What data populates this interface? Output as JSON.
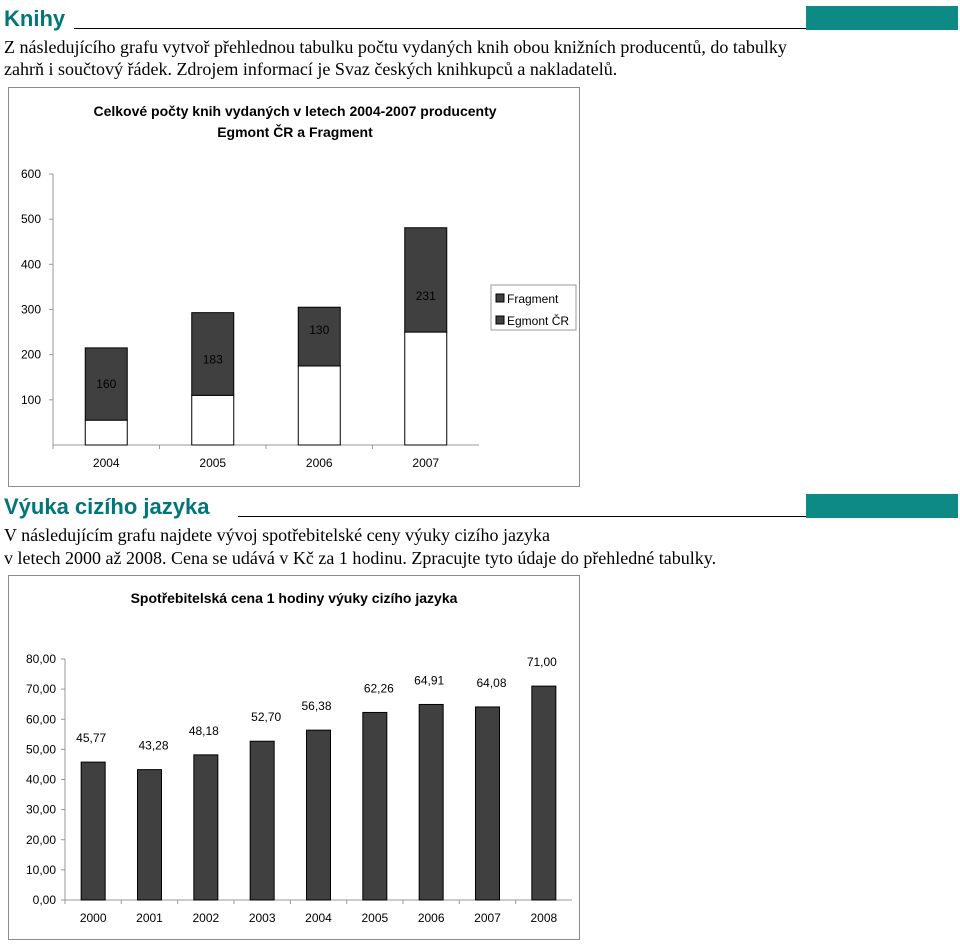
{
  "section1": {
    "title": "Knihy",
    "text_line1": "Z následujícího grafu vytvoř přehlednou tabulku počtu vydaných knih obou knižních producentů, do tabulky",
    "text_line2": "zahrň i součtový řádek. Zdrojem informací je Svaz českých knihkupců a nakladatelů."
  },
  "section2": {
    "title": "Výuka cizího jazyka",
    "text_line1": "V následujícím grafu najdete vývoj spotřebitelské ceny výuky cizího jazyka",
    "text_line2": " v letech 2000 až 2008. Cena se udává v Kč za 1 hodinu. Zpracujte tyto údaje do přehledné tabulky."
  },
  "colors": {
    "accent": "#0d8a85",
    "title_text": "#00767a",
    "bar_dark": "#404040",
    "bar_light": "#ffffff"
  },
  "chart_data": [
    {
      "type": "bar",
      "stacked": true,
      "title_line1": "Celkové počty knih vydaných v letech 2004-2007 producenty",
      "title_line2": "Egmont ČR a Fragment",
      "categories": [
        "2004",
        "2005",
        "2006",
        "2007"
      ],
      "series": [
        {
          "name": "Egmont ČR",
          "values": [
            55,
            110,
            175,
            250
          ],
          "color": "#ffffff"
        },
        {
          "name": "Fragment",
          "values": [
            160,
            183,
            130,
            231
          ],
          "color": "#404040"
        }
      ],
      "data_labels": [
        "160",
        "183",
        "130",
        "231"
      ],
      "yticks": [
        "100",
        "200",
        "300",
        "400",
        "500",
        "600"
      ],
      "ylim": [
        0,
        600
      ],
      "legend_position": "right",
      "legend": [
        "Fragment",
        "Egmont ČR"
      ]
    },
    {
      "type": "bar",
      "title": "Spotřebitelská cena 1 hodiny výuky cizího jazyka",
      "categories": [
        "2000",
        "2001",
        "2002",
        "2003",
        "2004",
        "2005",
        "2006",
        "2007",
        "2008"
      ],
      "values": [
        45.77,
        43.28,
        48.18,
        52.7,
        56.38,
        62.26,
        64.91,
        64.08,
        71.0
      ],
      "data_labels": [
        "45,77",
        "43,28",
        "48,18",
        "52,70",
        "56,38",
        "62,26",
        "64,91",
        "64,08",
        "71,00"
      ],
      "yticks": [
        "0,00",
        "10,00",
        "20,00",
        "30,00",
        "40,00",
        "50,00",
        "60,00",
        "70,00",
        "80,00"
      ],
      "ylim": [
        0,
        80
      ],
      "color": "#404040"
    }
  ]
}
